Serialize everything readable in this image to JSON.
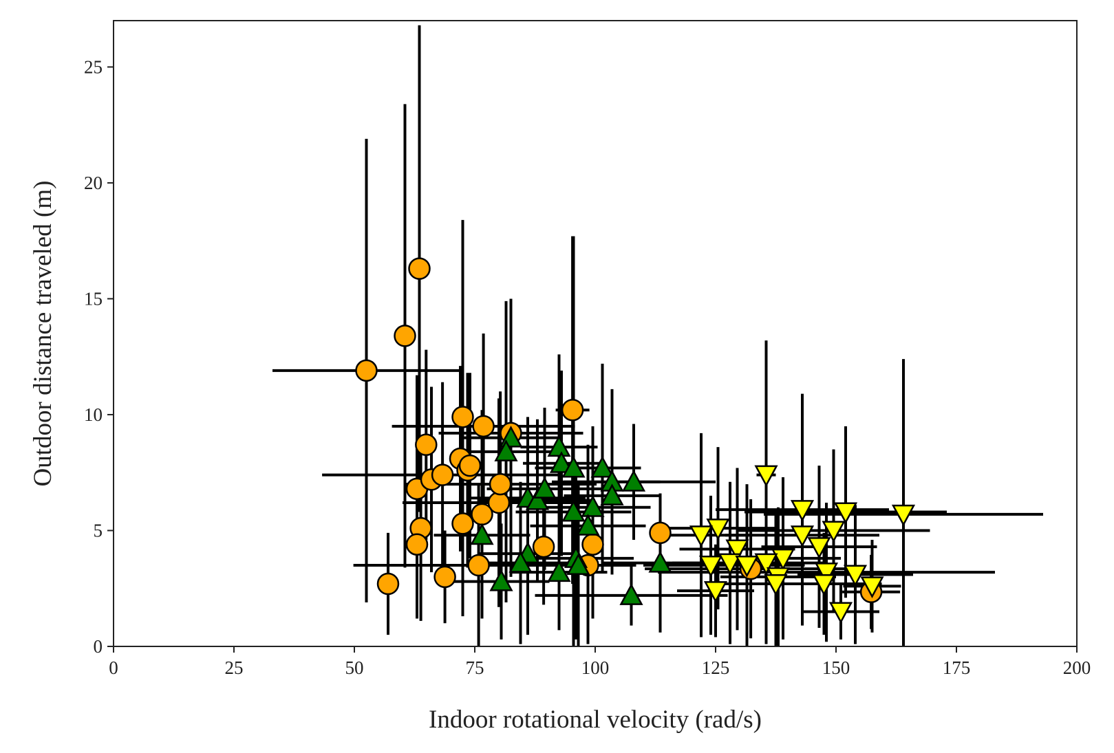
{
  "chart_data": {
    "type": "scatter",
    "title": "",
    "xlabel": "Indoor rotational velocity (rad/s)",
    "ylabel": "Outdoor distance traveled (m)",
    "xlim": [
      0,
      200
    ],
    "ylim": [
      0,
      27
    ],
    "x_ticks": [
      0,
      25,
      50,
      75,
      100,
      125,
      150,
      175,
      200
    ],
    "y_ticks": [
      0,
      5,
      10,
      15,
      20,
      25
    ],
    "x_tick_labels": [
      "0",
      "25",
      "50",
      "75",
      "100",
      "125",
      "150",
      "175",
      "200"
    ],
    "y_tick_labels": [
      "0",
      "5",
      "10",
      "15",
      "20",
      "25"
    ],
    "grid": false,
    "legend": "none",
    "series": [
      {
        "marker": "circle",
        "color": "#FFA500",
        "points": [
          {
            "x": 52.5,
            "y": 11.9,
            "xerr": 19.5,
            "yerr": 10.0
          },
          {
            "x": 60.5,
            "y": 13.4,
            "xerr": 0.0,
            "yerr": 10.0
          },
          {
            "x": 63.5,
            "y": 16.3,
            "xerr": 0.0,
            "yerr": 10.5
          },
          {
            "x": 64.9,
            "y": 8.7,
            "xerr": 0.0,
            "yerr": 4.1
          },
          {
            "x": 63.0,
            "y": 6.8,
            "xerr": 0.0,
            "yerr": 4.9
          },
          {
            "x": 66.0,
            "y": 7.2,
            "xerr": 0.0,
            "yerr": 4.0
          },
          {
            "x": 68.3,
            "y": 7.4,
            "xerr": 25.0,
            "yerr": 4.0
          },
          {
            "x": 72.0,
            "y": 8.1,
            "xerr": 0.0,
            "yerr": 4.0
          },
          {
            "x": 72.5,
            "y": 9.9,
            "xerr": 0.0,
            "yerr": 8.5
          },
          {
            "x": 73.5,
            "y": 7.6,
            "xerr": 0.0,
            "yerr": 4.2
          },
          {
            "x": 74.0,
            "y": 7.8,
            "xerr": 0.0,
            "yerr": 4.0
          },
          {
            "x": 76.8,
            "y": 9.5,
            "xerr": 19.0,
            "yerr": 4.0
          },
          {
            "x": 82.5,
            "y": 9.2,
            "xerr": 15.0,
            "yerr": 5.5
          },
          {
            "x": 95.3,
            "y": 10.2,
            "xerr": 3.5,
            "yerr": 7.5
          },
          {
            "x": 80.0,
            "y": 6.2,
            "xerr": 20.0,
            "yerr": 4.5
          },
          {
            "x": 80.3,
            "y": 7.0,
            "xerr": 20.0,
            "yerr": 4.0
          },
          {
            "x": 76.5,
            "y": 5.7,
            "xerr": 0.0,
            "yerr": 4.5
          },
          {
            "x": 72.5,
            "y": 5.3,
            "xerr": 0.0,
            "yerr": 4.0
          },
          {
            "x": 63.8,
            "y": 5.1,
            "xerr": 0.0,
            "yerr": 4.0
          },
          {
            "x": 63.0,
            "y": 4.4,
            "xerr": 0.0,
            "yerr": 3.2
          },
          {
            "x": 57.0,
            "y": 2.7,
            "xerr": 0.0,
            "yerr": 2.2
          },
          {
            "x": 68.8,
            "y": 3.0,
            "xerr": 0.0,
            "yerr": 2.0
          },
          {
            "x": 75.8,
            "y": 3.5,
            "xerr": 26.0,
            "yerr": 3.5
          },
          {
            "x": 89.3,
            "y": 4.3,
            "xerr": 0.0,
            "yerr": 2.5
          },
          {
            "x": 99.5,
            "y": 4.4,
            "xerr": 0.0,
            "yerr": 3.2
          },
          {
            "x": 98.5,
            "y": 3.5,
            "xerr": 0.0,
            "yerr": 3.4
          },
          {
            "x": 113.5,
            "y": 4.9,
            "xerr": 0.0,
            "yerr": 1.5
          },
          {
            "x": 132.3,
            "y": 3.35,
            "xerr": 22.0,
            "yerr": 3.0
          },
          {
            "x": 157.3,
            "y": 2.35,
            "xerr": 6.0,
            "yerr": 1.6
          }
        ]
      },
      {
        "marker": "triangle-up",
        "color": "#007F00",
        "points": [
          {
            "x": 82.5,
            "y": 9.0,
            "xerr": 10.0,
            "yerr": 6.0
          },
          {
            "x": 81.5,
            "y": 8.4,
            "xerr": 10.0,
            "yerr": 6.5
          },
          {
            "x": 92.5,
            "y": 8.6,
            "xerr": 8.0,
            "yerr": 4.0
          },
          {
            "x": 93.0,
            "y": 7.9,
            "xerr": 8.0,
            "yerr": 4.0
          },
          {
            "x": 95.5,
            "y": 7.7,
            "xerr": 8.0,
            "yerr": 10.0
          },
          {
            "x": 101.5,
            "y": 7.7,
            "xerr": 8.0,
            "yerr": 4.5
          },
          {
            "x": 103.5,
            "y": 7.1,
            "xerr": 10.0,
            "yerr": 4.0
          },
          {
            "x": 108.0,
            "y": 7.1,
            "xerr": 17.0,
            "yerr": 2.5
          },
          {
            "x": 103.5,
            "y": 6.5,
            "xerr": 10.0,
            "yerr": 3.0
          },
          {
            "x": 86.0,
            "y": 6.4,
            "xerr": 12.0,
            "yerr": 3.5
          },
          {
            "x": 88.0,
            "y": 6.3,
            "xerr": 12.0,
            "yerr": 3.5
          },
          {
            "x": 89.5,
            "y": 6.8,
            "xerr": 12.0,
            "yerr": 3.5
          },
          {
            "x": 99.5,
            "y": 6.0,
            "xerr": 12.0,
            "yerr": 3.5
          },
          {
            "x": 95.5,
            "y": 5.8,
            "xerr": 12.0,
            "yerr": 3.5
          },
          {
            "x": 98.5,
            "y": 5.2,
            "xerr": 12.0,
            "yerr": 3.5
          },
          {
            "x": 76.5,
            "y": 4.8,
            "xerr": 10.0,
            "yerr": 3.5
          },
          {
            "x": 86.0,
            "y": 4.0,
            "xerr": 10.0,
            "yerr": 3.5
          },
          {
            "x": 84.5,
            "y": 3.6,
            "xerr": 10.0,
            "yerr": 3.5
          },
          {
            "x": 96.0,
            "y": 3.8,
            "xerr": 12.0,
            "yerr": 3.5
          },
          {
            "x": 96.5,
            "y": 3.5,
            "xerr": 12.0,
            "yerr": 3.5
          },
          {
            "x": 92.5,
            "y": 3.2,
            "xerr": 10.0,
            "yerr": 2.5
          },
          {
            "x": 80.5,
            "y": 2.8,
            "xerr": 10.0,
            "yerr": 2.5
          },
          {
            "x": 113.5,
            "y": 3.6,
            "xerr": 12.0,
            "yerr": 3.0
          },
          {
            "x": 107.5,
            "y": 2.2,
            "xerr": 20.0,
            "yerr": 1.3
          }
        ]
      },
      {
        "marker": "triangle-down",
        "color": "#FFFF00",
        "points": [
          {
            "x": 135.5,
            "y": 7.4,
            "xerr": 2.0,
            "yerr": 5.8
          },
          {
            "x": 164.0,
            "y": 5.7,
            "xerr": 29.0,
            "yerr": 6.7
          },
          {
            "x": 143.0,
            "y": 5.9,
            "xerr": 18.0,
            "yerr": 5.0
          },
          {
            "x": 152.0,
            "y": 5.8,
            "xerr": 21.0,
            "yerr": 3.7
          },
          {
            "x": 125.5,
            "y": 5.1,
            "xerr": 12.0,
            "yerr": 3.5
          },
          {
            "x": 149.5,
            "y": 5.0,
            "xerr": 20.0,
            "yerr": 3.5
          },
          {
            "x": 122.0,
            "y": 4.8,
            "xerr": 10.0,
            "yerr": 4.4
          },
          {
            "x": 143.0,
            "y": 4.8,
            "xerr": 16.0,
            "yerr": 3.5
          },
          {
            "x": 146.5,
            "y": 4.3,
            "xerr": 12.0,
            "yerr": 3.5
          },
          {
            "x": 129.5,
            "y": 4.2,
            "xerr": 12.0,
            "yerr": 3.5
          },
          {
            "x": 139.0,
            "y": 3.8,
            "xerr": 12.0,
            "yerr": 3.5
          },
          {
            "x": 124.0,
            "y": 3.5,
            "xerr": 14.0,
            "yerr": 3.0
          },
          {
            "x": 128.0,
            "y": 3.6,
            "xerr": 12.0,
            "yerr": 3.5
          },
          {
            "x": 131.5,
            "y": 3.5,
            "xerr": 12.0,
            "yerr": 3.5
          },
          {
            "x": 135.5,
            "y": 3.6,
            "xerr": 12.0,
            "yerr": 3.5
          },
          {
            "x": 148.0,
            "y": 3.2,
            "xerr": 35.0,
            "yerr": 3.0
          },
          {
            "x": 154.0,
            "y": 3.1,
            "xerr": 12.0,
            "yerr": 3.0
          },
          {
            "x": 138.0,
            "y": 3.0,
            "xerr": 12.0,
            "yerr": 3.0
          },
          {
            "x": 137.5,
            "y": 2.7,
            "xerr": 12.0,
            "yerr": 3.0
          },
          {
            "x": 147.5,
            "y": 2.7,
            "xerr": 12.0,
            "yerr": 2.2
          },
          {
            "x": 157.5,
            "y": 2.6,
            "xerr": 6.0,
            "yerr": 2.0
          },
          {
            "x": 125.0,
            "y": 2.4,
            "xerr": 8.0,
            "yerr": 2.0
          },
          {
            "x": 151.0,
            "y": 1.5,
            "xerr": 8.0,
            "yerr": 1.2
          }
        ]
      }
    ]
  }
}
